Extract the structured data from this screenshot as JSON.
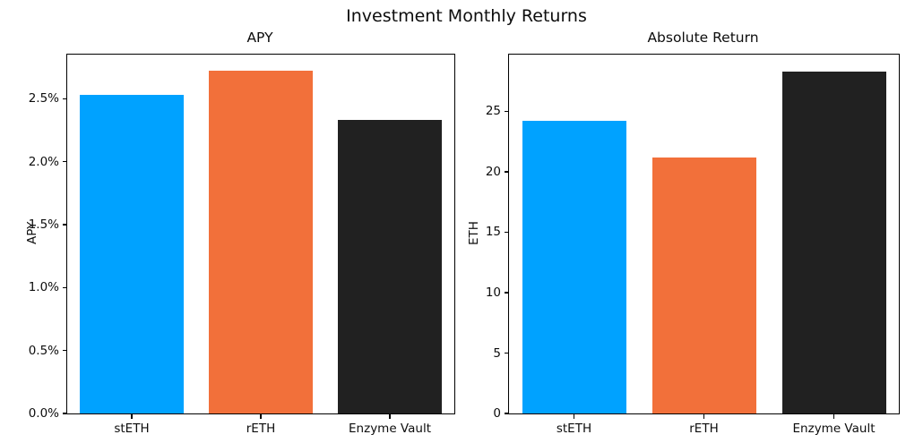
{
  "figure": {
    "suptitle": "Investment Monthly Returns",
    "background_color": "#ffffff",
    "text_color": "#0d0d0d"
  },
  "chart_data": [
    {
      "type": "bar",
      "title": "APY",
      "ylabel": "APY",
      "xlabel": "",
      "categories": [
        "stETH",
        "rETH",
        "Enzyme Vault"
      ],
      "values": [
        2.53,
        2.72,
        2.33
      ],
      "value_unit": "%",
      "ylim": [
        0,
        2.85
      ],
      "yticks": [
        0.0,
        0.5,
        1.0,
        1.5,
        2.0,
        2.5
      ],
      "ytick_labels": [
        "0.0%",
        "0.5%",
        "1.0%",
        "1.5%",
        "2.0%",
        "2.5%"
      ],
      "bar_colors": [
        "#00A2FF",
        "#F2703A",
        "#212121"
      ],
      "bar_width_fraction": 0.8,
      "grid": false,
      "legend": null
    },
    {
      "type": "bar",
      "title": "Absolute Return",
      "ylabel": "ETH",
      "xlabel": "",
      "categories": [
        "stETH",
        "rETH",
        "Enzyme Vault"
      ],
      "values": [
        24.2,
        21.2,
        28.3
      ],
      "value_unit": "ETH",
      "ylim": [
        0,
        29.7
      ],
      "yticks": [
        0,
        5,
        10,
        15,
        20,
        25
      ],
      "ytick_labels": [
        "0",
        "5",
        "10",
        "15",
        "20",
        "25"
      ],
      "bar_colors": [
        "#00A2FF",
        "#F2703A",
        "#212121"
      ],
      "bar_width_fraction": 0.8,
      "grid": false,
      "legend": null
    }
  ]
}
